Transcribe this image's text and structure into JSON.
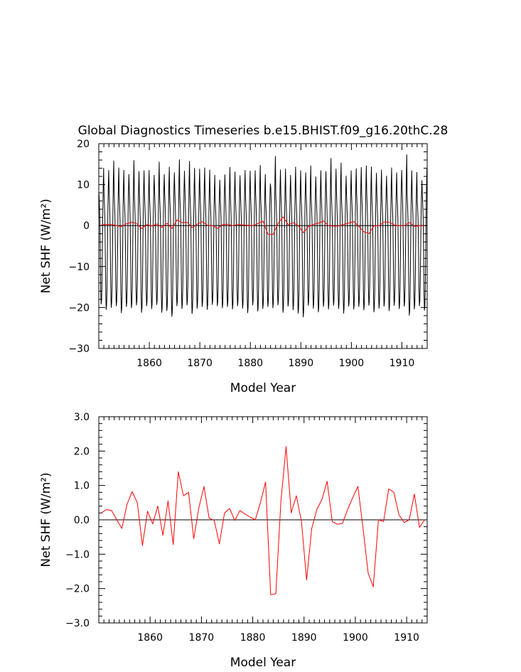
{
  "chart_data": [
    {
      "type": "line",
      "title": "Global Diagnostics Timeseries b.e15.BHIST.f09_g16.20thC.28",
      "xlabel": "Model Year",
      "ylabel": "Net SHF (W/m²)",
      "xlim": [
        1850,
        1915
      ],
      "ylim": [
        -30,
        20
      ],
      "xticks": [
        "1860",
        "1870",
        "1880",
        "1890",
        "1900",
        "1910"
      ],
      "yticks": [
        "−30",
        "−20",
        "−10",
        "0",
        "10",
        "20"
      ],
      "zero_line": true,
      "grid": false,
      "series": [
        {
          "color": "#000000",
          "style": "monthly",
          "annual_peak": [
            14.0,
            13.5,
            15.8,
            14.1,
            13.5,
            12.5,
            15.9,
            13.2,
            13.4,
            13.5,
            12.3,
            15.5,
            12.5,
            14.3,
            12.9,
            16.1,
            13.3,
            15.7,
            14.0,
            13.8,
            14.1,
            13.6,
            12.3,
            11.1,
            12.4,
            14.2,
            13.1,
            12.2,
            13.5,
            13.3,
            13.4,
            14.7,
            12.5,
            10.2,
            16.9,
            13.6,
            13.8,
            12.3,
            14.3,
            13.4,
            12.9,
            14.6,
            11.9,
            13.4,
            13.2,
            16.4,
            13.8,
            15.3,
            12.1,
            13.4,
            13.9,
            14.2,
            14.6,
            14.3,
            12.8,
            13.6,
            12.1,
            14.1,
            12.9,
            13.5,
            17.3,
            13.4,
            13.0,
            11.0,
            14.0
          ],
          "annual_trough": [
            -19.2,
            -20.5,
            -20.0,
            -19.6,
            -21.3,
            -19.8,
            -20.1,
            -19.4,
            -21.2,
            -19.6,
            -20.3,
            -19.3,
            -21.2,
            -20.8,
            -22.2,
            -19.6,
            -20.3,
            -19.4,
            -21.5,
            -20.2,
            -19.8,
            -20.5,
            -19.3,
            -19.6,
            -20.1,
            -19.8,
            -20.4,
            -19.6,
            -20.2,
            -21.3,
            -19.4,
            -20.9,
            -20.3,
            -19.8,
            -20.1,
            -19.4,
            -21.2,
            -19.7,
            -20.6,
            -21.4,
            -22.3,
            -19.5,
            -20.2,
            -21.1,
            -19.8,
            -20.4,
            -19.5,
            -20.3,
            -21.4,
            -19.7,
            -20.4,
            -19.8,
            -20.6,
            -19.5,
            -21.1,
            -20.2,
            -19.7,
            -20.8,
            -19.5,
            -20.3,
            -19.7,
            -21.9,
            -20.4,
            -19.6,
            -20.7
          ]
        },
        {
          "color": "#ff0000",
          "x": [
            1850.5,
            1851.5,
            1852.5,
            1853.5,
            1854.5,
            1855.5,
            1856.5,
            1857.5,
            1858.5,
            1859.5,
            1860.5,
            1861.5,
            1862.5,
            1863.5,
            1864.5,
            1865.5,
            1866.5,
            1867.5,
            1868.5,
            1869.5,
            1870.5,
            1871.5,
            1872.5,
            1873.5,
            1874.5,
            1875.5,
            1876.5,
            1877.5,
            1878.5,
            1879.5,
            1880.5,
            1881.5,
            1882.5,
            1883.5,
            1884.5,
            1885.5,
            1886.5,
            1887.5,
            1888.5,
            1889.5,
            1890.5,
            1891.5,
            1892.5,
            1893.5,
            1894.5,
            1895.5,
            1896.5,
            1897.5,
            1898.5,
            1899.5,
            1900.5,
            1901.5,
            1902.5,
            1903.5,
            1904.5,
            1905.5,
            1906.5,
            1907.5,
            1908.5,
            1909.5,
            1910.5,
            1911.5,
            1912.5,
            1913.5,
            1914.5
          ],
          "values": [
            0.2,
            0.3,
            0.27,
            0.0,
            -0.25,
            0.45,
            0.82,
            0.5,
            -0.75,
            0.25,
            -0.12,
            0.4,
            -0.45,
            0.55,
            -0.72,
            1.4,
            0.7,
            0.8,
            -0.55,
            0.35,
            0.97,
            0.05,
            -0.02,
            -0.7,
            0.2,
            0.33,
            -0.02,
            0.27,
            0.17,
            0.08,
            0.0,
            0.5,
            1.1,
            -2.18,
            -2.15,
            0.55,
            2.13,
            0.2,
            0.7,
            -0.05,
            -1.75,
            -0.25,
            0.3,
            0.6,
            1.12,
            -0.05,
            -0.13,
            -0.1,
            0.3,
            0.65,
            0.97,
            -0.25,
            -1.55,
            -1.95,
            0.0,
            -0.05,
            0.9,
            0.8,
            0.15,
            -0.08,
            0.0,
            0.75,
            -0.22,
            0.0,
            -0.1
          ]
        }
      ]
    },
    {
      "type": "line",
      "title": "",
      "xlabel": "Model Year",
      "ylabel": "Net SHF (W/m²)",
      "xlim": [
        1850,
        1914
      ],
      "ylim": [
        -3,
        3
      ],
      "xticks": [
        "1860",
        "1870",
        "1880",
        "1890",
        "1900",
        "1910"
      ],
      "yticks": [
        "−3.0",
        "−2.0",
        "−1.0",
        "0.0",
        "1.0",
        "2.0",
        "3.0"
      ],
      "zero_line": true,
      "grid": false,
      "series": [
        {
          "color": "#ff0000",
          "x": [
            1850.5,
            1851.5,
            1852.5,
            1853.5,
            1854.5,
            1855.5,
            1856.5,
            1857.5,
            1858.5,
            1859.5,
            1860.5,
            1861.5,
            1862.5,
            1863.5,
            1864.5,
            1865.5,
            1866.5,
            1867.5,
            1868.5,
            1869.5,
            1870.5,
            1871.5,
            1872.5,
            1873.5,
            1874.5,
            1875.5,
            1876.5,
            1877.5,
            1878.5,
            1879.5,
            1880.5,
            1881.5,
            1882.5,
            1883.5,
            1884.5,
            1885.5,
            1886.5,
            1887.5,
            1888.5,
            1889.5,
            1890.5,
            1891.5,
            1892.5,
            1893.5,
            1894.5,
            1895.5,
            1896.5,
            1897.5,
            1898.5,
            1899.5,
            1900.5,
            1901.5,
            1902.5,
            1903.5,
            1904.5,
            1905.5,
            1906.5,
            1907.5,
            1908.5,
            1909.5,
            1910.5,
            1911.5,
            1912.5,
            1913.5
          ],
          "values": [
            0.2,
            0.3,
            0.27,
            0.0,
            -0.25,
            0.45,
            0.82,
            0.5,
            -0.75,
            0.25,
            -0.12,
            0.4,
            -0.45,
            0.55,
            -0.72,
            1.4,
            0.7,
            0.8,
            -0.55,
            0.35,
            0.97,
            0.05,
            -0.02,
            -0.7,
            0.2,
            0.33,
            -0.02,
            0.27,
            0.17,
            0.08,
            0.0,
            0.5,
            1.1,
            -2.18,
            -2.15,
            0.55,
            2.13,
            0.2,
            0.7,
            -0.05,
            -1.75,
            -0.25,
            0.3,
            0.6,
            1.12,
            -0.05,
            -0.13,
            -0.1,
            0.3,
            0.65,
            0.97,
            -0.25,
            -1.55,
            -1.95,
            0.0,
            -0.05,
            0.9,
            0.8,
            0.15,
            -0.08,
            0.0,
            0.75,
            -0.22,
            0.0
          ]
        }
      ]
    }
  ]
}
